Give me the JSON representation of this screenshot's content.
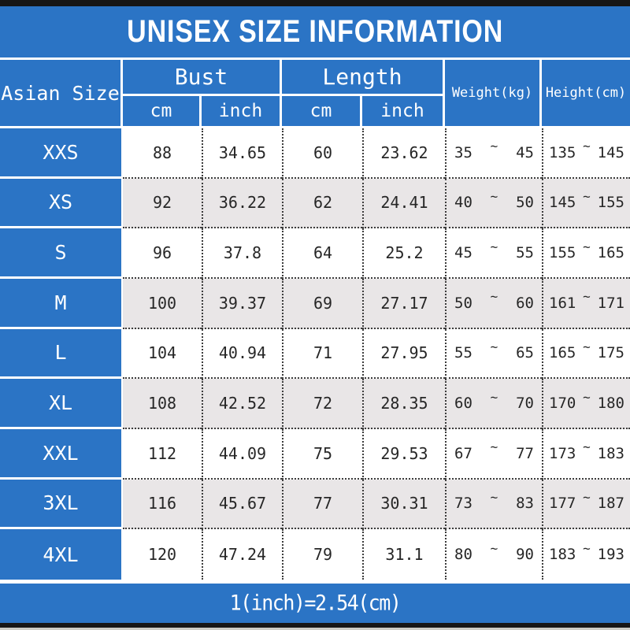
{
  "title": "UNISEX SIZE INFORMATION",
  "header": {
    "size_label": "Asian Size",
    "bust_label": "Bust",
    "length_label": "Length",
    "weight_label": "Weight(kg)",
    "height_label": "Height(cm)",
    "cm_label": "cm",
    "inch_label": "inch"
  },
  "tilde": "~",
  "rows": [
    {
      "size": "XXS",
      "bust_cm": "88",
      "bust_inch": "34.65",
      "length_cm": "60",
      "length_inch": "23.62",
      "weight_min": "35",
      "weight_max": "45",
      "height_min": "135",
      "height_max": "145"
    },
    {
      "size": "XS",
      "bust_cm": "92",
      "bust_inch": "36.22",
      "length_cm": "62",
      "length_inch": "24.41",
      "weight_min": "40",
      "weight_max": "50",
      "height_min": "145",
      "height_max": "155"
    },
    {
      "size": "S",
      "bust_cm": "96",
      "bust_inch": "37.8",
      "length_cm": "64",
      "length_inch": "25.2",
      "weight_min": "45",
      "weight_max": "55",
      "height_min": "155",
      "height_max": "165"
    },
    {
      "size": "M",
      "bust_cm": "100",
      "bust_inch": "39.37",
      "length_cm": "69",
      "length_inch": "27.17",
      "weight_min": "50",
      "weight_max": "60",
      "height_min": "161",
      "height_max": "171"
    },
    {
      "size": "L",
      "bust_cm": "104",
      "bust_inch": "40.94",
      "length_cm": "71",
      "length_inch": "27.95",
      "weight_min": "55",
      "weight_max": "65",
      "height_min": "165",
      "height_max": "175"
    },
    {
      "size": "XL",
      "bust_cm": "108",
      "bust_inch": "42.52",
      "length_cm": "72",
      "length_inch": "28.35",
      "weight_min": "60",
      "weight_max": "70",
      "height_min": "170",
      "height_max": "180"
    },
    {
      "size": "XXL",
      "bust_cm": "112",
      "bust_inch": "44.09",
      "length_cm": "75",
      "length_inch": "29.53",
      "weight_min": "67",
      "weight_max": "77",
      "height_min": "173",
      "height_max": "183"
    },
    {
      "size": "3XL",
      "bust_cm": "116",
      "bust_inch": "45.67",
      "length_cm": "77",
      "length_inch": "30.31",
      "weight_min": "73",
      "weight_max": "83",
      "height_min": "177",
      "height_max": "187"
    },
    {
      "size": "4XL",
      "bust_cm": "120",
      "bust_inch": "47.24",
      "length_cm": "79",
      "length_inch": "31.1",
      "weight_min": "80",
      "weight_max": "90",
      "height_min": "183",
      "height_max": "193"
    }
  ],
  "footer_note": "1(inch)=2.54(cm)",
  "colors": {
    "accent_blue": "#2b74c5",
    "alt_row_gray": "#e9e6e7",
    "frame_black": "#161616",
    "data_text": "#262626"
  }
}
